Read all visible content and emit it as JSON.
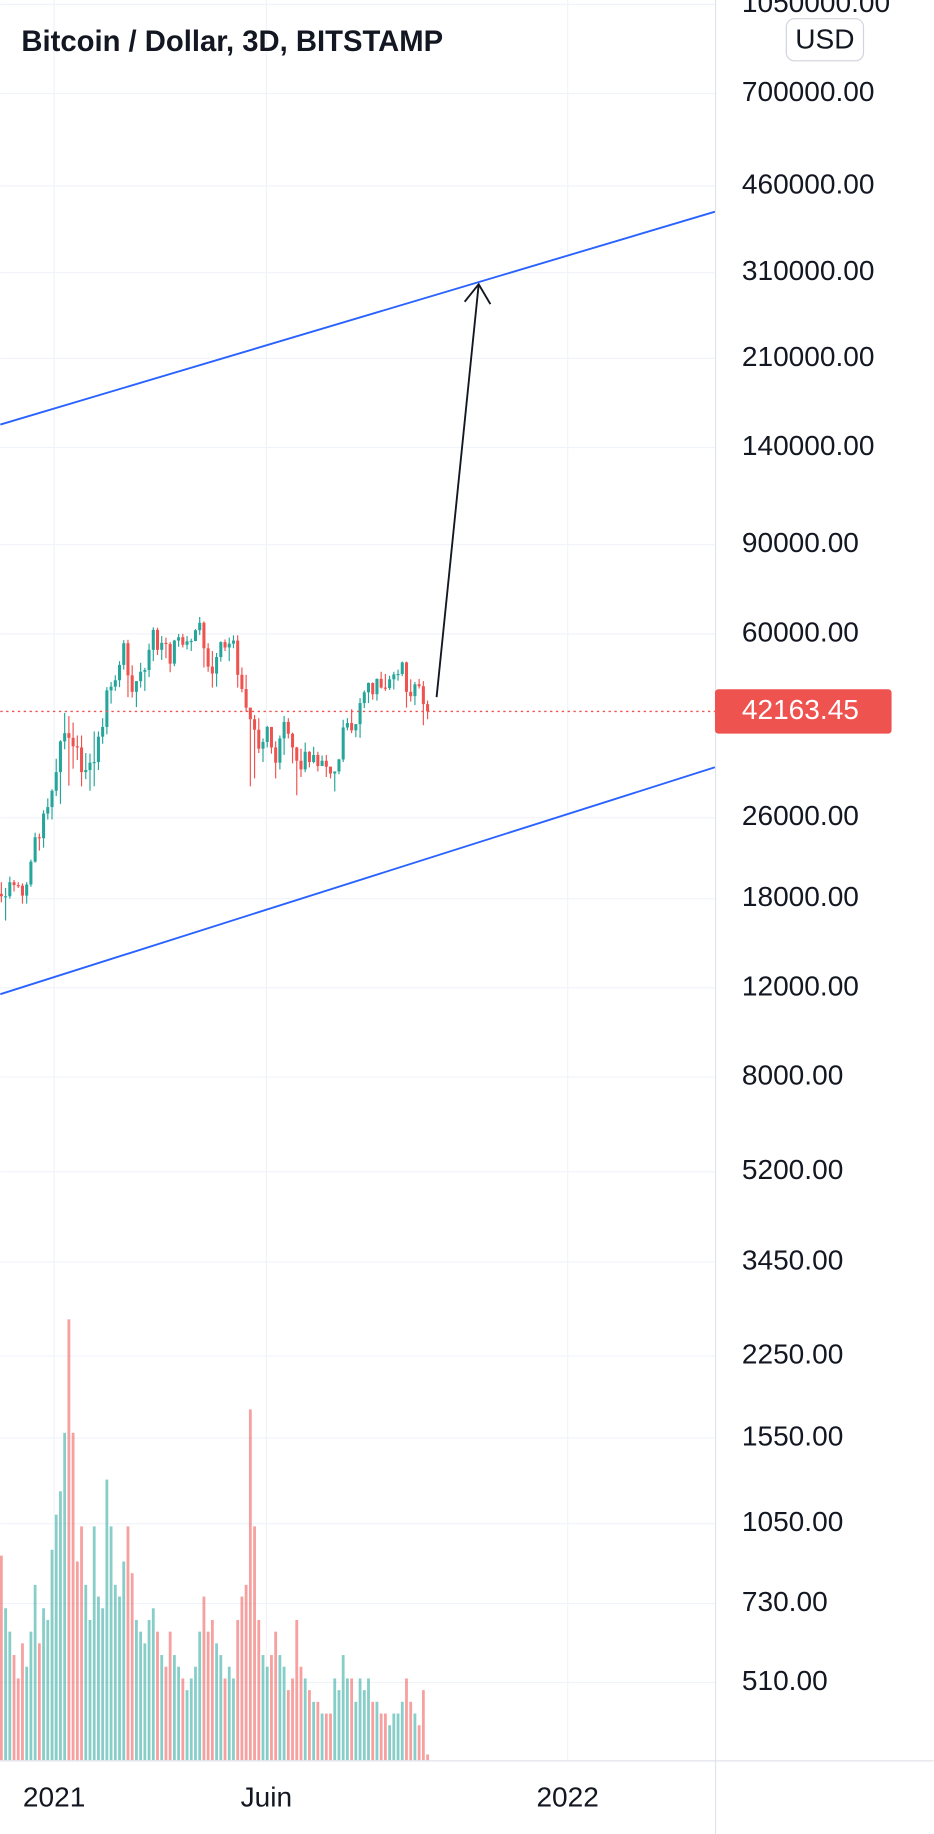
{
  "chart_data": {
    "type": "candlestick",
    "title": "Bitcoin / Dollar, 3D, BITSTAMP",
    "currency": "USD",
    "log_scale": true,
    "grid": true,
    "up_color": "#26a69a",
    "down_color": "#ef5350",
    "ylim": [
      358,
      1071000
    ],
    "yticks": [
      {
        "value": 1050000,
        "label": "1050000.00"
      },
      {
        "value": 700000,
        "label": "700000.00"
      },
      {
        "value": 460000,
        "label": "460000.00"
      },
      {
        "value": 310000,
        "label": "310000.00"
      },
      {
        "value": 210000,
        "label": "210000.00"
      },
      {
        "value": 140000,
        "label": "140000.00"
      },
      {
        "value": 90000,
        "label": "90000.00"
      },
      {
        "value": 60000,
        "label": "60000.00"
      },
      {
        "value": 26000,
        "label": "26000.00"
      },
      {
        "value": 18000,
        "label": "18000.00"
      },
      {
        "value": 12000,
        "label": "12000.00"
      },
      {
        "value": 8000,
        "label": "8000.00"
      },
      {
        "value": 5200,
        "label": "5200.00"
      },
      {
        "value": 3450,
        "label": "3450.00"
      },
      {
        "value": 2250,
        "label": "2250.00"
      },
      {
        "value": 1550,
        "label": "1550.00"
      },
      {
        "value": 1050,
        "label": "1050.00"
      },
      {
        "value": 730,
        "label": "730.00"
      },
      {
        "value": 510,
        "label": "510.00"
      }
    ],
    "xlim": [
      -0.25,
      169.1
    ],
    "xticks": [
      {
        "value": 12.5,
        "label": "2021"
      },
      {
        "value": 62.8,
        "label": "Juin"
      },
      {
        "value": 134.2,
        "label": "2022"
      }
    ],
    "last_price": 42163.45,
    "open": [
      18400,
      18200,
      18200,
      19400,
      19150,
      19100,
      18250,
      19200,
      21300,
      23800,
      23700,
      26500,
      27300,
      29400,
      32000,
      36800,
      38200,
      37400,
      36000,
      35800,
      32000,
      32300,
      33400,
      33500,
      37600,
      39300,
      46400,
      47200,
      48600,
      52100,
      57500,
      49700,
      46100,
      48400,
      50500,
      50900,
      55800,
      61100,
      55800,
      57600,
      57300,
      52400,
      58200,
      59100,
      57100,
      58000,
      58100,
      61000,
      63100,
      56200,
      51700,
      50100,
      54000,
      57800,
      56400,
      57400,
      58200,
      49800,
      46700,
      42900,
      40700,
      38800,
      35600,
      36700,
      39300,
      35800,
      33400,
      37300,
      40200,
      38100,
      35800,
      33700,
      32400,
      35100,
      33500,
      34600,
      32900,
      33700,
      32800,
      31800,
      32100,
      33900,
      39200,
      40000,
      38700,
      39800,
      43800,
      46000,
      48000,
      45600,
      48900,
      47000,
      46900,
      48800,
      49900,
      50000,
      52700,
      46100,
      45200,
      47700,
      47300,
      43600
    ],
    "high": [
      19400,
      18900,
      19900,
      19600,
      19400,
      19300,
      19400,
      21500,
      24300,
      24200,
      26900,
      28400,
      29600,
      34000,
      37000,
      41900,
      41300,
      40100,
      37800,
      37800,
      34900,
      34800,
      38500,
      38500,
      40900,
      47100,
      48200,
      49700,
      53000,
      58300,
      58400,
      52000,
      48400,
      52600,
      51400,
      57400,
      61800,
      61700,
      59400,
      59000,
      57800,
      58400,
      60000,
      60000,
      59400,
      58700,
      61300,
      64800,
      63500,
      57500,
      55500,
      55000,
      58000,
      58500,
      59000,
      59600,
      59600,
      51500,
      49800,
      42900,
      41500,
      40900,
      37300,
      39500,
      39300,
      36800,
      37800,
      41300,
      40900,
      38300,
      35900,
      35600,
      36600,
      35200,
      35900,
      35100,
      34500,
      34600,
      32800,
      32100,
      34000,
      40600,
      40900,
      42600,
      39800,
      44800,
      46400,
      48100,
      48100,
      49000,
      50500,
      50000,
      49600,
      50500,
      51000,
      52900,
      52900,
      48800,
      48200,
      48900,
      48400,
      44300
    ],
    "low": [
      17700,
      16300,
      18000,
      18600,
      18900,
      17600,
      17600,
      19000,
      21200,
      22400,
      22700,
      25800,
      25800,
      28700,
      27700,
      35500,
      30100,
      32500,
      33800,
      30000,
      31000,
      29400,
      30000,
      32300,
      36400,
      38000,
      43700,
      46300,
      47100,
      51000,
      45000,
      44900,
      43000,
      47000,
      46300,
      49300,
      53000,
      54500,
      53300,
      53700,
      50400,
      51800,
      56600,
      56400,
      55900,
      55500,
      58000,
      59700,
      51500,
      50500,
      47000,
      47200,
      52900,
      55500,
      53000,
      56200,
      47000,
      46000,
      42100,
      30000,
      31100,
      34900,
      33500,
      35800,
      34800,
      31100,
      32400,
      34600,
      37300,
      33300,
      28800,
      31300,
      32000,
      32700,
      33300,
      32100,
      32900,
      31300,
      31100,
      29300,
      31700,
      33500,
      38700,
      38200,
      37500,
      37400,
      42800,
      43800,
      44500,
      44300,
      46800,
      46300,
      46500,
      46600,
      48500,
      49500,
      42900,
      44100,
      43400,
      46800,
      39600,
      40700
    ],
    "close": [
      18200,
      18200,
      19400,
      19150,
      19100,
      18250,
      19200,
      21300,
      23800,
      23700,
      26500,
      27300,
      29400,
      32000,
      36800,
      38200,
      37400,
      36000,
      35800,
      32000,
      32300,
      33400,
      33500,
      37600,
      39300,
      46400,
      47200,
      48600,
      52100,
      57500,
      49700,
      46100,
      48400,
      50500,
      50900,
      55800,
      61100,
      55800,
      57600,
      57300,
      52400,
      58200,
      59100,
      57100,
      58000,
      58100,
      61000,
      63100,
      56200,
      51700,
      50100,
      54000,
      57800,
      56400,
      57400,
      58200,
      49800,
      46700,
      42900,
      40700,
      38800,
      35600,
      36700,
      39300,
      35800,
      33400,
      37300,
      40200,
      38100,
      35800,
      33700,
      32400,
      35100,
      33500,
      34600,
      32900,
      33700,
      32800,
      31800,
      32100,
      33900,
      39200,
      40000,
      38700,
      39800,
      43800,
      46000,
      48000,
      45600,
      48900,
      47000,
      46900,
      48800,
      49900,
      50000,
      52700,
      46100,
      45200,
      47700,
      47300,
      43600,
      42163.45
    ],
    "volume_lim": [
      0,
      47000
    ],
    "volume": [
      17500,
      13000,
      11000,
      9000,
      7000,
      10000,
      8000,
      11000,
      15000,
      10000,
      13000,
      12000,
      18000,
      21000,
      23000,
      28000,
      37700,
      28000,
      17000,
      20000,
      15000,
      12000,
      20000,
      14000,
      13000,
      24000,
      20000,
      15000,
      14000,
      17000,
      20000,
      16000,
      12000,
      11000,
      10000,
      12000,
      13000,
      11000,
      9000,
      8000,
      11000,
      9000,
      8000,
      7000,
      6000,
      7000,
      8000,
      11000,
      14000,
      11000,
      12000,
      10000,
      9000,
      7000,
      8000,
      7000,
      12000,
      14000,
      15000,
      30000,
      20000,
      12000,
      9000,
      8000,
      9000,
      11000,
      9000,
      8000,
      6000,
      7000,
      12000,
      8000,
      7000,
      6000,
      5000,
      5000,
      4000,
      4000,
      4000,
      7000,
      6000,
      9000,
      7000,
      7000,
      5000,
      7000,
      6000,
      7000,
      5000,
      5000,
      4000,
      4000,
      3000,
      4000,
      4000,
      5000,
      7000,
      5000,
      4000,
      3000,
      6000,
      500
    ]
  }
}
